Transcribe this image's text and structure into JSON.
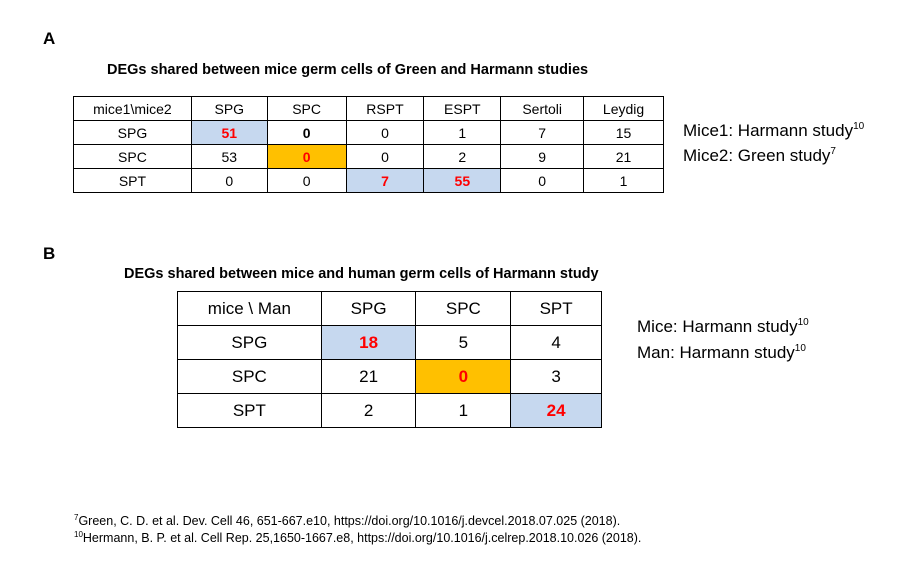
{
  "panel_a": {
    "label": "A",
    "title": "DEGs shared between mice germ cells of Green and Harmann studies",
    "header": [
      "mice1\\mice2",
      "SPG",
      "SPC",
      "RSPT",
      "ESPT",
      "Sertoli",
      "Leydig"
    ],
    "rows": [
      {
        "label": "SPG",
        "values": [
          "51",
          "0",
          "0",
          "1",
          "7",
          "15"
        ]
      },
      {
        "label": "SPC",
        "values": [
          "53",
          "0",
          "0",
          "2",
          "9",
          "21"
        ]
      },
      {
        "label": "SPT",
        "values": [
          "0",
          "0",
          "7",
          "55",
          "0",
          "1"
        ]
      }
    ],
    "highlight_colors": {
      "blue": "#c6d8ef",
      "orange": "#ffc000",
      "red_text": "#ff0000"
    },
    "notes": [
      {
        "text": "Mice1: Harmann study",
        "sup": "10"
      },
      {
        "text": "Mice2: Green study",
        "sup": "7"
      }
    ]
  },
  "panel_b": {
    "label": "B",
    "title": "DEGs shared between mice and human germ cells of Harmann study",
    "header": [
      "mice \\ Man",
      "SPG",
      "SPC",
      "SPT"
    ],
    "rows": [
      {
        "label": "SPG",
        "values": [
          "18",
          "5",
          "4"
        ]
      },
      {
        "label": "SPC",
        "values": [
          "21",
          "0",
          "3"
        ]
      },
      {
        "label": "SPT",
        "values": [
          "2",
          "1",
          "24"
        ]
      }
    ],
    "notes": [
      {
        "text": "Mice: Harmann study",
        "sup": "10"
      },
      {
        "text": "Man: Harmann study",
        "sup": "10"
      }
    ]
  },
  "references": [
    {
      "sup": "7",
      "text": "Green, C. D. et al. Dev. Cell 46, 651-667.e10, https://doi.org/10.1016/j.devcel.2018.07.025 (2018)."
    },
    {
      "sup": "10",
      "text": "Hermann, B. P. et al. Cell Rep. 25,1650-1667.e8, https://doi.org/10.1016/j.celrep.2018.10.026 (2018)."
    }
  ]
}
